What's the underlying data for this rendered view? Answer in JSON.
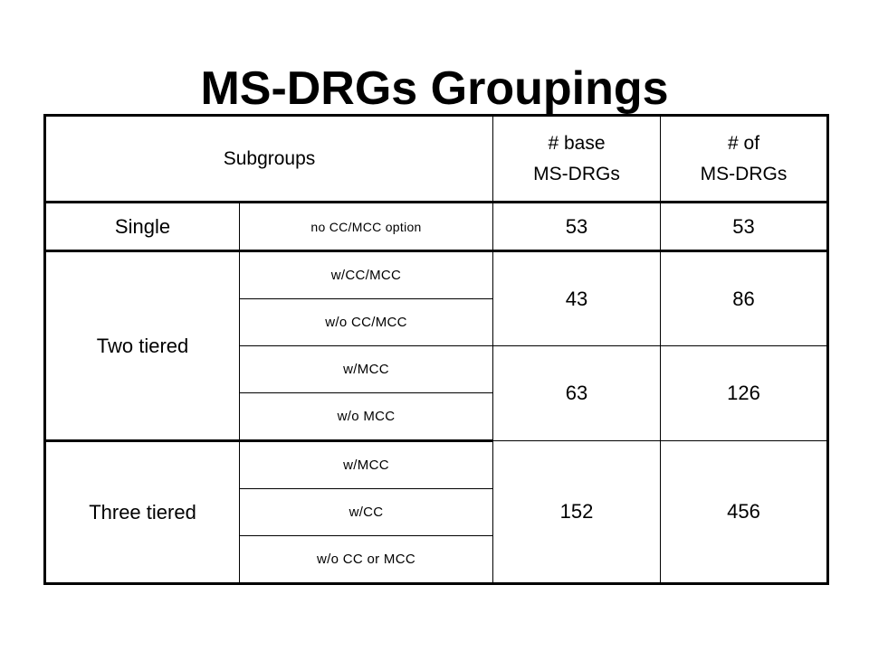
{
  "title": "MS-DRGs Groupings",
  "table": {
    "headers": {
      "subgroups": "Subgroups",
      "base_line1": "# base",
      "base_line2": "MS-DRGs",
      "total_line1": "# of",
      "total_line2": "MS-DRGs"
    },
    "single": {
      "label": "Single",
      "subgroup": "no CC/MCC option",
      "base": "53",
      "total": "53"
    },
    "two_tiered": {
      "label": "Two tiered",
      "pair1": {
        "subgroups": [
          "w/CC/MCC",
          "w/o CC/MCC"
        ],
        "base": "43",
        "total": "86"
      },
      "pair2": {
        "subgroups": [
          "w/MCC",
          "w/o MCC"
        ],
        "base": "63",
        "total": "126"
      }
    },
    "three_tiered": {
      "label": "Three tiered",
      "subgroups": [
        "w/MCC",
        "w/CC",
        "w/o CC or MCC"
      ],
      "base": "152",
      "total": "456"
    }
  }
}
